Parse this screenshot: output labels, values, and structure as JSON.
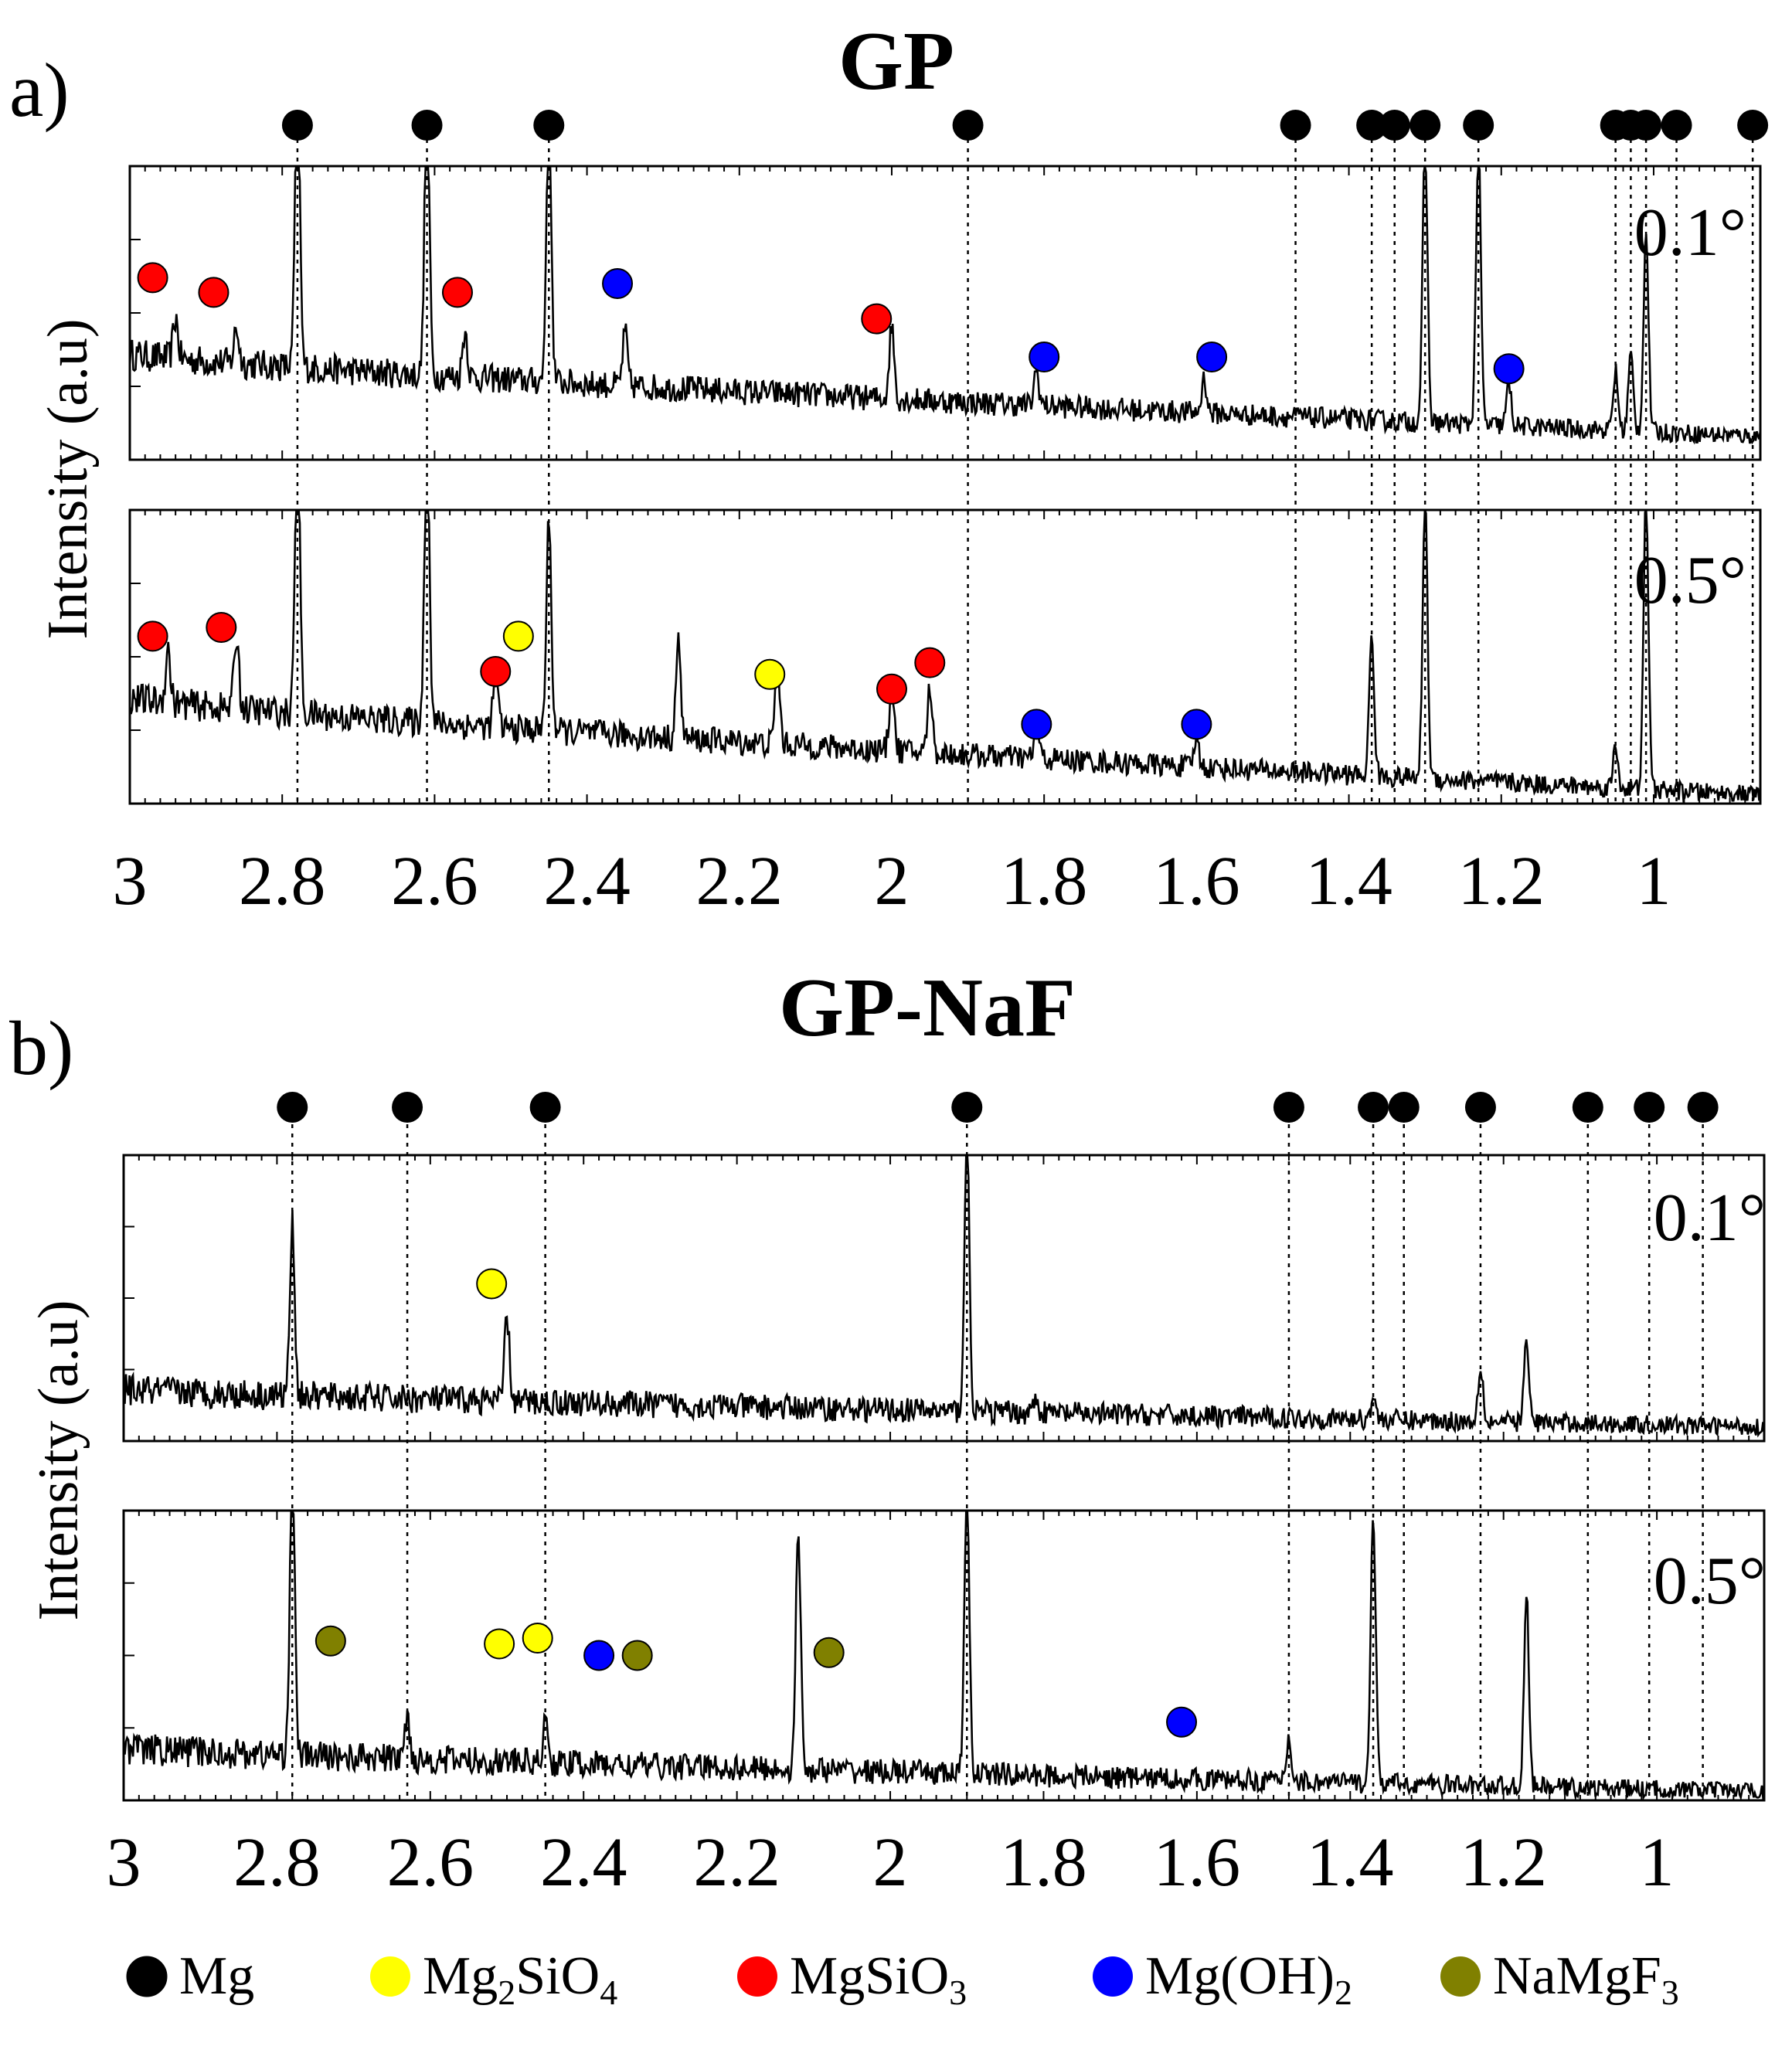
{
  "figure": {
    "type": "xrd-stacked",
    "xlabel": "",
    "ylabel": "Intensity (a.u)",
    "legend": {
      "placement": "bottom",
      "items": [
        {
          "name": "Mg",
          "color": "#000000"
        },
        {
          "name": "Mg2SiO4",
          "base": "Mg",
          "sub1": "2",
          "mid": "SiO",
          "sub2": "4",
          "color": "#ffff00"
        },
        {
          "name": "MgSiO3",
          "base": "MgSiO",
          "sub1": "3",
          "color": "#ff0000"
        },
        {
          "name": "Mg(OH)2",
          "base": "Mg(OH)",
          "sub1": "2",
          "color": "#0000ff"
        },
        {
          "name": "NaMgF3",
          "base": "NaMgF",
          "sub1": "3",
          "color": "#808000"
        }
      ]
    }
  },
  "chart_data": [
    {
      "panel": "a)",
      "title": "GP",
      "type": "line",
      "xlim": [
        3.0,
        0.86
      ],
      "x_reversed": true,
      "x_ticks": [
        3,
        2.8,
        2.6,
        2.4,
        2.2,
        2,
        1.8,
        1.6,
        1.4,
        1.2,
        1
      ],
      "x_tick_labels": [
        "3",
        "2.8",
        "2.6",
        "2.4",
        "2.2",
        "2",
        "1.8",
        "1.6",
        "1.4",
        "1.2",
        "1"
      ],
      "mg_reference_lines": [
        2.78,
        2.61,
        2.45,
        1.9,
        1.47,
        1.37,
        1.34,
        1.3,
        1.23,
        1.05,
        1.03,
        1.01,
        0.97,
        0.87
      ],
      "subplots": [
        {
          "label": "0.1°",
          "background": {
            "start": 0.36,
            "end": 0.08
          },
          "peaks": [
            {
              "x": 2.94,
              "h": 0.14
            },
            {
              "x": 2.86,
              "h": 0.12
            },
            {
              "x": 2.78,
              "h": 1.0
            },
            {
              "x": 2.61,
              "h": 0.95
            },
            {
              "x": 2.56,
              "h": 0.16
            },
            {
              "x": 2.45,
              "h": 0.95
            },
            {
              "x": 2.35,
              "h": 0.18
            },
            {
              "x": 2.0,
              "h": 0.25
            },
            {
              "x": 1.81,
              "h": 0.12
            },
            {
              "x": 1.59,
              "h": 0.12
            },
            {
              "x": 1.3,
              "h": 0.95
            },
            {
              "x": 1.23,
              "h": 0.95
            },
            {
              "x": 1.19,
              "h": 0.14
            },
            {
              "x": 1.05,
              "h": 0.2
            },
            {
              "x": 1.03,
              "h": 0.26
            },
            {
              "x": 1.01,
              "h": 0.68
            }
          ],
          "markers": [
            {
              "phase": "MgSiO3",
              "x": 2.97,
              "h": 0.62
            },
            {
              "phase": "MgSiO3",
              "x": 2.89,
              "h": 0.57
            },
            {
              "phase": "MgSiO3",
              "x": 2.57,
              "h": 0.57
            },
            {
              "phase": "Mg(OH)2",
              "x": 2.36,
              "h": 0.6
            },
            {
              "phase": "MgSiO3",
              "x": 2.02,
              "h": 0.48
            },
            {
              "phase": "Mg(OH)2",
              "x": 1.8,
              "h": 0.35
            },
            {
              "phase": "Mg(OH)2",
              "x": 1.58,
              "h": 0.35
            },
            {
              "phase": "Mg(OH)2",
              "x": 1.19,
              "h": 0.31
            }
          ]
        },
        {
          "label": "0.5°",
          "background": {
            "start": 0.36,
            "end": 0.03
          },
          "peaks": [
            {
              "x": 2.95,
              "h": 0.18
            },
            {
              "x": 2.86,
              "h": 0.25
            },
            {
              "x": 2.78,
              "h": 1.0
            },
            {
              "x": 2.61,
              "h": 1.0
            },
            {
              "x": 2.52,
              "h": 0.16
            },
            {
              "x": 2.45,
              "h": 0.72
            },
            {
              "x": 2.28,
              "h": 0.32
            },
            {
              "x": 2.15,
              "h": 0.26
            },
            {
              "x": 2.0,
              "h": 0.22
            },
            {
              "x": 1.95,
              "h": 0.22
            },
            {
              "x": 1.81,
              "h": 0.1
            },
            {
              "x": 1.6,
              "h": 0.1
            },
            {
              "x": 1.37,
              "h": 0.48
            },
            {
              "x": 1.3,
              "h": 0.95
            },
            {
              "x": 1.05,
              "h": 0.14
            },
            {
              "x": 1.01,
              "h": 1.0
            }
          ],
          "markers": [
            {
              "phase": "MgSiO3",
              "x": 2.97,
              "h": 0.57
            },
            {
              "phase": "MgSiO3",
              "x": 2.88,
              "h": 0.6
            },
            {
              "phase": "Mg2SiO4",
              "x": 2.49,
              "h": 0.57
            },
            {
              "phase": "MgSiO3",
              "x": 2.52,
              "h": 0.45
            },
            {
              "phase": "Mg2SiO4",
              "x": 2.16,
              "h": 0.44
            },
            {
              "phase": "MgSiO3",
              "x": 2.0,
              "h": 0.39
            },
            {
              "phase": "MgSiO3",
              "x": 1.95,
              "h": 0.48
            },
            {
              "phase": "Mg(OH)2",
              "x": 1.81,
              "h": 0.27
            },
            {
              "phase": "Mg(OH)2",
              "x": 1.6,
              "h": 0.27
            }
          ]
        }
      ]
    },
    {
      "panel": "b)",
      "title": "GP-NaF",
      "type": "line",
      "xlim": [
        3.0,
        0.86
      ],
      "x_reversed": true,
      "x_ticks": [
        3,
        2.8,
        2.6,
        2.4,
        2.2,
        2,
        1.8,
        1.6,
        1.4,
        1.2,
        1
      ],
      "x_tick_labels": [
        "3",
        "2.8",
        "2.6",
        "2.4",
        "2.2",
        "2",
        "1.8",
        "1.6",
        "1.4",
        "1.2",
        "1"
      ],
      "mg_reference_lines": [
        2.78,
        2.63,
        2.45,
        1.9,
        1.48,
        1.37,
        1.33,
        1.23,
        1.09,
        1.01,
        0.94
      ],
      "subplots": [
        {
          "label": "0.1°",
          "background": {
            "start": 0.18,
            "end": 0.05
          },
          "peaks": [
            {
              "x": 2.78,
              "h": 0.6
            },
            {
              "x": 2.5,
              "h": 0.3
            },
            {
              "x": 1.9,
              "h": 0.98
            },
            {
              "x": 1.81,
              "h": 0.05
            },
            {
              "x": 1.37,
              "h": 0.08
            },
            {
              "x": 1.23,
              "h": 0.2
            },
            {
              "x": 1.17,
              "h": 0.28
            }
          ],
          "markers": [
            {
              "phase": "Mg2SiO4",
              "x": 2.52,
              "h": 0.55
            }
          ]
        },
        {
          "label": "0.5°",
          "background": {
            "start": 0.18,
            "end": 0.03
          },
          "peaks": [
            {
              "x": 2.78,
              "h": 1.0
            },
            {
              "x": 2.63,
              "h": 0.15
            },
            {
              "x": 2.45,
              "h": 0.14
            },
            {
              "x": 2.12,
              "h": 0.82
            },
            {
              "x": 1.9,
              "h": 1.0
            },
            {
              "x": 1.48,
              "h": 0.15
            },
            {
              "x": 1.37,
              "h": 0.94
            },
            {
              "x": 1.17,
              "h": 0.65
            }
          ],
          "markers": [
            {
              "phase": "NaMgF3",
              "x": 2.73,
              "h": 0.55
            },
            {
              "phase": "Mg2SiO4",
              "x": 2.51,
              "h": 0.54
            },
            {
              "phase": "Mg2SiO4",
              "x": 2.46,
              "h": 0.56
            },
            {
              "phase": "Mg(OH)2",
              "x": 2.38,
              "h": 0.5
            },
            {
              "phase": "NaMgF3",
              "x": 2.33,
              "h": 0.5
            },
            {
              "phase": "NaMgF3",
              "x": 2.08,
              "h": 0.51
            },
            {
              "phase": "Mg(OH)2",
              "x": 1.62,
              "h": 0.27
            }
          ]
        }
      ]
    }
  ]
}
